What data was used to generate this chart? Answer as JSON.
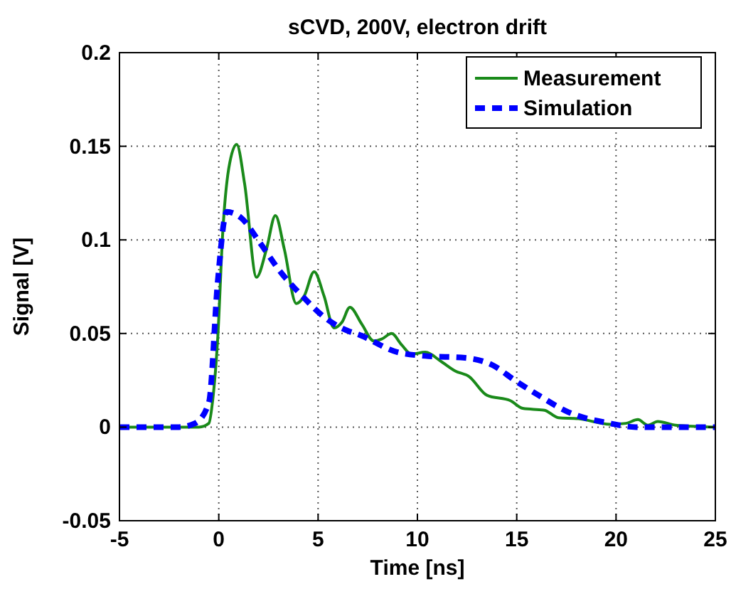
{
  "chart_data": {
    "type": "line",
    "title": "sCVD, 200V, electron drift",
    "xlabel": "Time [ns]",
    "ylabel": "Signal [V]",
    "xlim": [
      -5,
      25
    ],
    "xticks": [
      -5,
      0,
      5,
      10,
      15,
      20,
      25
    ],
    "ylim": [
      -0.05,
      0.2
    ],
    "yticks": [
      -0.05,
      0,
      0.05,
      0.1,
      0.15,
      0.2
    ],
    "grid": true,
    "legend": "top right",
    "series": [
      {
        "name": "Measurement",
        "color": "#1a8a1a",
        "line_style": "solid",
        "x": [
          -5,
          -2,
          -1,
          -0.5,
          -0.3,
          -0.05,
          0.2,
          0.5,
          0.9,
          1.3,
          1.9,
          2.4,
          2.85,
          3.3,
          3.9,
          4.3,
          4.8,
          5.3,
          5.8,
          6.2,
          6.6,
          7.2,
          7.8,
          8.2,
          8.7,
          9.2,
          9.7,
          10.4,
          11.2,
          11.9,
          12.6,
          13.5,
          14.7,
          15.3,
          16.4,
          17.1,
          18.1,
          19.7,
          20.5,
          21.1,
          21.6,
          22.1,
          23,
          25
        ],
        "values": [
          0,
          0,
          0,
          0.002,
          0.015,
          0.048,
          0.104,
          0.138,
          0.151,
          0.13,
          0.08,
          0.095,
          0.113,
          0.095,
          0.066,
          0.07,
          0.083,
          0.07,
          0.053,
          0.056,
          0.064,
          0.055,
          0.046,
          0.047,
          0.05,
          0.044,
          0.039,
          0.04,
          0.035,
          0.03,
          0.027,
          0.017,
          0.014,
          0.01,
          0.009,
          0.005,
          0.0045,
          0.0015,
          0.002,
          0.004,
          0.001,
          0.003,
          0.001,
          0
        ]
      },
      {
        "name": "Simulation",
        "color": "#0000ff",
        "line_style": "dashed",
        "x": [
          -5,
          -2,
          -1.2,
          -0.5,
          -0.05,
          0.4,
          1.1,
          2.1,
          3.1,
          4.2,
          5.4,
          6.6,
          6.9,
          9,
          10.4,
          12.4,
          13.8,
          14.9,
          16.1,
          17.6,
          19.7,
          21,
          25
        ],
        "values": [
          0,
          0,
          0.002,
          0.013,
          0.078,
          0.115,
          0.112,
          0.098,
          0.083,
          0.07,
          0.058,
          0.051,
          0.05,
          0.04,
          0.038,
          0.037,
          0.033,
          0.025,
          0.017,
          0.008,
          0.002,
          0,
          0
        ]
      }
    ]
  }
}
